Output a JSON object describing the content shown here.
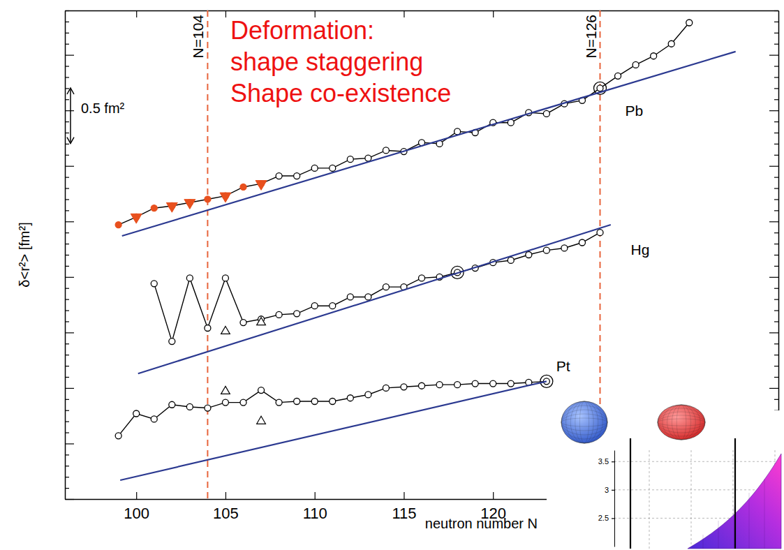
{
  "chart_data": [
    {
      "type": "line",
      "x_label": "neutron number N",
      "y_label": "δ<r²> [fm²]",
      "xlim": [
        96,
        136
      ],
      "ylim": [
        0,
        4.4
      ],
      "xticks": [
        100,
        105,
        110,
        115,
        120
      ],
      "yticks": [
        0,
        0.1,
        0.2,
        0.3,
        0.4,
        0.5,
        0.6,
        0.7,
        0.8,
        0.9,
        1,
        1.1,
        1.2,
        1.3,
        1.4,
        1.5,
        1.6,
        1.7,
        1.8,
        1.9,
        2,
        2.1,
        2.2,
        2.3,
        2.4,
        2.5,
        2.6,
        2.7,
        2.8,
        2.9,
        3,
        3.1,
        3.2,
        3.3,
        3.4,
        3.5,
        3.6,
        3.7,
        3.8,
        3.9,
        4,
        4.1,
        4.2,
        4.3,
        4.4
      ],
      "tick_labels": "x",
      "grid": false,
      "series": [
        {
          "name": "Pb",
          "color": "#000000",
          "marker": "circle",
          "reference": 126,
          "x": [
            99,
            100,
            101,
            102,
            103,
            104,
            105,
            106,
            107,
            108,
            109,
            110,
            111,
            112,
            113,
            114,
            115,
            116,
            117,
            118,
            119,
            120,
            121,
            122,
            123,
            124,
            125,
            126,
            127,
            128,
            129,
            130,
            131
          ],
          "values": [
            2.47,
            2.54,
            2.62,
            2.64,
            2.67,
            2.7,
            2.73,
            2.81,
            2.84,
            2.91,
            2.91,
            2.98,
            2.98,
            3.06,
            3.07,
            3.14,
            3.13,
            3.21,
            3.2,
            3.31,
            3.3,
            3.39,
            3.39,
            3.48,
            3.47,
            3.56,
            3.59,
            3.7,
            3.81,
            3.91,
            3.99,
            4.1,
            4.29
          ],
          "colors": [
            "#e8501e",
            "#e8501e",
            "#e8501e",
            "#e8501e",
            "#e8501e",
            "#e8501e",
            "#e8501e",
            "#e8501e",
            "#e8501e",
            "#000000",
            "#000000",
            "#000000",
            "#000000",
            "#000000",
            "#000000",
            "#000000",
            "#000000",
            "#000000",
            "#000000",
            "#000000",
            "#000000",
            "#000000",
            "#000000",
            "#000000",
            "#000000",
            "#000000",
            "#000000",
            "#000000",
            "#000000",
            "#000000",
            "#000000",
            "#000000",
            "#000000"
          ]
        },
        {
          "type": "scatter",
          "color": "#e8501e",
          "marker": "filled-triangle-down",
          "x": [
            100,
            102,
            103,
            105,
            107
          ],
          "values": [
            2.54,
            2.64,
            2.67,
            2.73,
            2.84
          ]
        },
        {
          "name": "Hg",
          "color": "#000000",
          "marker": "circle",
          "reference": 118,
          "x": [
            101,
            102,
            103,
            104,
            105,
            106,
            107,
            108,
            109,
            110,
            111,
            112,
            113,
            114,
            115,
            116,
            117,
            118,
            119,
            120,
            121,
            122,
            123,
            124,
            125,
            126
          ],
          "values": [
            1.94,
            1.42,
            1.99,
            1.54,
            1.99,
            1.59,
            1.62,
            1.66,
            1.67,
            1.74,
            1.74,
            1.82,
            1.82,
            1.91,
            1.91,
            1.99,
            2.0,
            2.04,
            2.08,
            2.13,
            2.15,
            2.2,
            2.24,
            2.26,
            2.31,
            2.4
          ]
        },
        {
          "type": "scatter",
          "color": "#000000",
          "marker": "triangle",
          "x": [
            105,
            107
          ],
          "values": [
            1.51,
            1.59
          ]
        },
        {
          "name": "Pt",
          "color": "#000000",
          "marker": "circle",
          "reference": 123,
          "x": [
            99,
            100,
            101,
            102,
            103,
            104,
            105,
            106,
            107,
            108,
            109,
            110,
            111,
            112,
            113,
            114,
            115,
            116,
            117,
            118,
            119,
            120,
            121,
            122,
            123
          ],
          "values": [
            0.57,
            0.77,
            0.72,
            0.85,
            0.83,
            0.82,
            0.87,
            0.87,
            0.98,
            0.87,
            0.88,
            0.88,
            0.88,
            0.91,
            0.94,
            1.0,
            1.01,
            1.02,
            1.03,
            1.03,
            1.04,
            1.04,
            1.04,
            1.05,
            1.06
          ]
        },
        {
          "type": "scatter",
          "color": "#000000",
          "marker": "triangle",
          "x": [
            105,
            107
          ],
          "values": [
            0.97,
            0.7
          ]
        },
        {
          "type": "line",
          "color": "#2b3990",
          "marker": "none",
          "x": [
            99.2,
            133.6
          ],
          "values": [
            2.37,
            4.03
          ]
        },
        {
          "type": "line",
          "color": "#2b3990",
          "marker": "none",
          "x": [
            100.1,
            126.6
          ],
          "values": [
            1.13,
            2.47
          ]
        },
        {
          "type": "line",
          "color": "#2b3990",
          "marker": "none",
          "x": [
            99.1,
            123
          ],
          "values": [
            0.17,
            1.06
          ]
        }
      ],
      "vlines": [
        {
          "x": 104,
          "label": "N=104"
        },
        {
          "x": 126,
          "label": "N=126"
        }
      ],
      "scale_bar": {
        "value": 0.5,
        "label": "0.5 fm²"
      },
      "annotations": [
        {
          "text": "Deformation:"
        },
        {
          "text": "shape staggering"
        },
        {
          "text": "Shape co-existence"
        }
      ]
    },
    {
      "type": "surface",
      "ylim": [
        2.0,
        3.7
      ],
      "yticks": [
        2.5,
        3,
        3.5
      ],
      "tick_labels": "y",
      "grid": true
    }
  ]
}
